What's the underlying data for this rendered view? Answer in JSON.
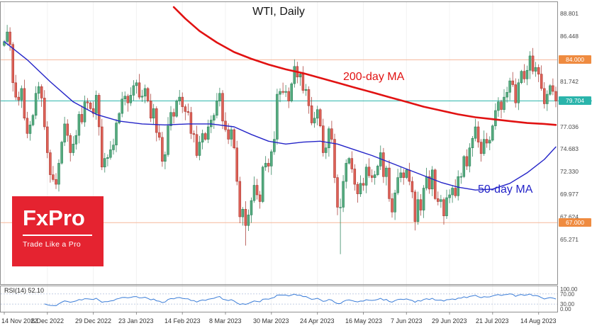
{
  "title": "WTI, Daily",
  "chart_data": {
    "type": "candlestick",
    "symbol": "WTI",
    "timeframe": "Daily",
    "price_range": [
      60.8,
      89.5
    ],
    "first_open": 85.5,
    "closes": [
      85.9,
      86.9,
      85.6,
      81.6,
      80.1,
      79.8,
      81.0,
      77.9,
      76.3,
      77.2,
      78.2,
      80.5,
      81.2,
      80.0,
      77.0,
      74.3,
      72.0,
      71.5,
      71.0,
      73.2,
      75.4,
      77.3,
      76.1,
      74.3,
      75.2,
      76.1,
      78.3,
      77.5,
      79.6,
      79.5,
      78.9,
      78.4,
      80.3,
      77.0,
      72.8,
      73.7,
      73.8,
      74.6,
      75.1,
      77.4,
      78.4,
      79.9,
      80.2,
      79.5,
      80.3,
      81.3,
      81.6,
      80.1,
      80.2,
      81.0,
      79.7,
      77.9,
      78.9,
      76.4,
      75.9,
      73.4,
      74.1,
      77.1,
      78.5,
      78.1,
      79.7,
      80.1,
      79.1,
      78.6,
      78.5,
      76.3,
      76.2,
      74.0,
      75.4,
      76.3,
      75.7,
      77.0,
      77.7,
      78.2,
      79.7,
      80.5,
      77.6,
      76.7,
      75.7,
      76.7,
      74.8,
      71.3,
      67.6,
      68.4,
      66.7,
      67.8,
      69.3,
      70.9,
      69.9,
      69.2,
      72.8,
      73.2,
      72.9,
      74.4,
      75.7,
      80.4,
      80.7,
      80.6,
      80.7,
      79.7,
      81.5,
      83.3,
      82.2,
      82.5,
      80.8,
      80.9,
      79.2,
      77.4,
      77.9,
      78.8,
      77.1,
      74.3,
      74.8,
      76.8,
      75.7,
      71.7,
      68.6,
      68.6,
      71.3,
      73.2,
      73.7,
      72.6,
      71.0,
      70.0,
      71.1,
      70.9,
      72.8,
      71.9,
      71.7,
      72.0,
      72.9,
      74.3,
      71.8,
      72.7,
      69.5,
      68.1,
      70.1,
      71.7,
      72.2,
      71.7,
      72.5,
      71.3,
      70.2,
      67.1,
      69.4,
      68.3,
      70.6,
      71.8,
      70.5,
      72.5,
      69.5,
      69.2,
      69.4,
      67.7,
      69.6,
      69.9,
      70.6,
      69.8,
      71.8,
      71.8,
      73.9,
      72.9,
      74.8,
      75.8,
      77.0,
      75.4,
      74.2,
      75.7,
      75.3,
      75.6,
      77.1,
      78.7,
      79.6,
      78.8,
      80.1,
      80.6,
      81.8,
      81.4,
      79.5,
      81.6,
      82.8,
      82.0,
      82.9,
      84.4,
      82.8,
      83.2,
      82.5,
      81.0,
      79.4,
      80.4,
      81.3,
      80.7,
      79.7
    ],
    "wick_overrides": {
      "84": {
        "low": 64.6
      },
      "117": {
        "low": 63.7
      },
      "183": {
        "high": 84.9
      }
    },
    "candle_colors": {
      "up_fill": "#56ab7f",
      "up_stroke": "#1f7a50",
      "down_fill": "#dd6157",
      "down_stroke": "#a32f28"
    },
    "ma200": {
      "label": "200-day MA",
      "color": "#e11212",
      "points": [
        [
          59,
          89.5
        ],
        [
          63,
          88.3
        ],
        [
          68,
          87.0
        ],
        [
          74,
          85.8
        ],
        [
          80,
          84.8
        ],
        [
          86,
          84.1
        ],
        [
          92,
          83.5
        ],
        [
          98,
          83.0
        ],
        [
          104,
          82.6
        ],
        [
          110,
          82.1
        ],
        [
          116,
          81.6
        ],
        [
          122,
          81.1
        ],
        [
          128,
          80.6
        ],
        [
          134,
          80.1
        ],
        [
          140,
          79.6
        ],
        [
          146,
          79.1
        ],
        [
          152,
          78.7
        ],
        [
          158,
          78.3
        ],
        [
          164,
          78.0
        ],
        [
          170,
          77.8
        ],
        [
          176,
          77.6
        ],
        [
          182,
          77.4
        ],
        [
          188,
          77.3
        ],
        [
          192,
          77.2
        ]
      ]
    },
    "ma50": {
      "label": "50-day MA",
      "color": "#2424c8",
      "points": [
        [
          0,
          85.9
        ],
        [
          8,
          84.0
        ],
        [
          16,
          81.7
        ],
        [
          24,
          79.6
        ],
        [
          32,
          78.3
        ],
        [
          40,
          77.6
        ],
        [
          48,
          77.3
        ],
        [
          56,
          77.2
        ],
        [
          64,
          77.3
        ],
        [
          72,
          77.3
        ],
        [
          80,
          77.0
        ],
        [
          86,
          76.2
        ],
        [
          92,
          75.5
        ],
        [
          98,
          75.2
        ],
        [
          104,
          75.4
        ],
        [
          110,
          75.5
        ],
        [
          116,
          75.2
        ],
        [
          122,
          74.6
        ],
        [
          128,
          74.0
        ],
        [
          134,
          73.3
        ],
        [
          140,
          72.6
        ],
        [
          146,
          71.9
        ],
        [
          152,
          71.2
        ],
        [
          158,
          70.7
        ],
        [
          164,
          70.4
        ],
        [
          170,
          70.5
        ],
        [
          176,
          71.1
        ],
        [
          182,
          72.2
        ],
        [
          188,
          73.6
        ],
        [
          192,
          74.9
        ]
      ]
    },
    "levels": [
      {
        "value": 84.0,
        "label": "84.000",
        "line_color": "#f5b79a",
        "badge_color": "#ef8b40"
      },
      {
        "value": 67.0,
        "label": "67.000",
        "line_color": "#f5b79a",
        "badge_color": "#ef8b40"
      }
    ],
    "current_price": {
      "value": 79.704,
      "label": "79.704",
      "color": "#2ab4ab"
    },
    "price_ticks": [
      "88.801",
      "86.448",
      "84.095",
      "81.742",
      "79.389",
      "77.036",
      "74.683",
      "72.330",
      "69.977",
      "67.624",
      "65.271"
    ],
    "date_ticks": [
      {
        "label": "14 Nov 2022",
        "index": 0
      },
      {
        "label": "6 Dec 2022",
        "index": 15
      },
      {
        "label": "29 Dec 2022",
        "index": 31
      },
      {
        "label": "23 Jan 2023",
        "index": 46
      },
      {
        "label": "14 Feb 2023",
        "index": 62
      },
      {
        "label": "8 Mar 2023",
        "index": 77
      },
      {
        "label": "30 Mar 2023",
        "index": 93
      },
      {
        "label": "24 Apr 2023",
        "index": 109
      },
      {
        "label": "16 May 2023",
        "index": 125
      },
      {
        "label": "7 Jun 2023",
        "index": 140
      },
      {
        "label": "29 Jun 2023",
        "index": 155
      },
      {
        "label": "21 Jul 2023",
        "index": 170
      },
      {
        "label": "14 Aug 2023",
        "index": 186
      }
    ],
    "rsi": {
      "label": "RSI(14) 52.10",
      "period": 14,
      "value": 52.1,
      "color": "#3b7dd8",
      "ticks": [
        "100.00",
        "70.00",
        "30.00",
        "0.00"
      ],
      "tick_values": [
        100,
        70,
        30,
        0
      ],
      "guide_levels": [
        70,
        30
      ]
    }
  },
  "logo": {
    "brand": "FxPro",
    "tagline": "Trade Like a Pro",
    "bg_color": "#e52330"
  }
}
